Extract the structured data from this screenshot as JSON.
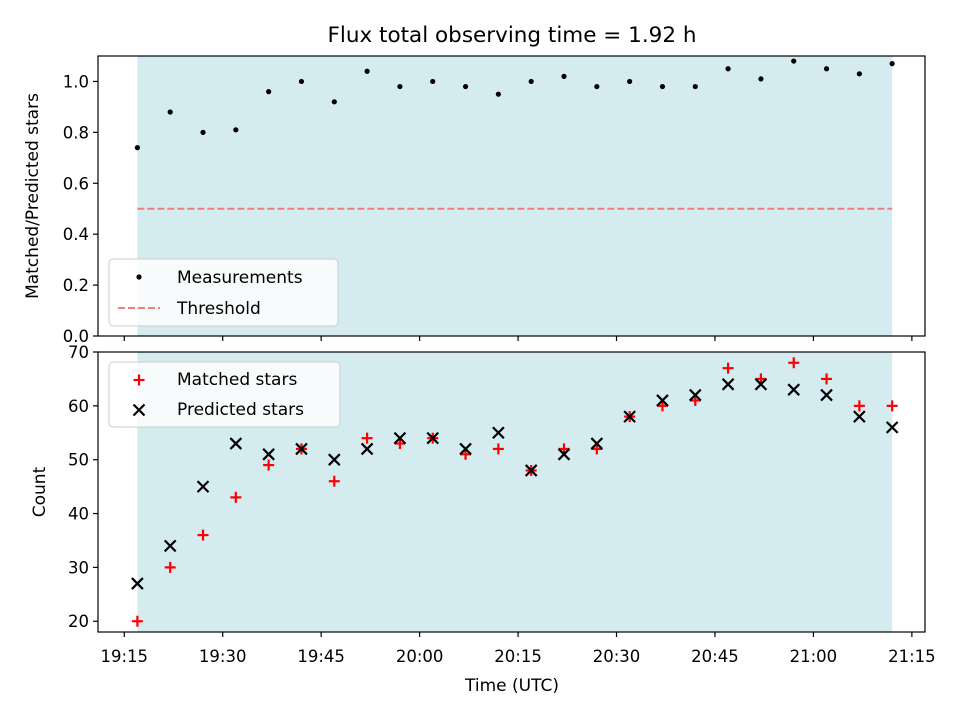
{
  "chart_data": [
    {
      "type": "scatter",
      "title": "Flux total observing time = 1.92 h",
      "ylabel": "Matched/Predicted stars",
      "xlabel": "",
      "xlim": [
        "19:11",
        "21:17"
      ],
      "ylim": [
        0,
        1.1
      ],
      "yticks": [
        0.0,
        0.2,
        0.4,
        0.6,
        0.8,
        1.0
      ],
      "yticklabels": [
        "0.0",
        "0.2",
        "0.4",
        "0.6",
        "0.8",
        "1.0"
      ],
      "grid": false,
      "legend_position": "lower-left",
      "shaded_interval": [
        "19:17",
        "21:12"
      ],
      "shade_color": "#d4ebf0",
      "series": [
        {
          "name": "Measurements",
          "marker": "dot",
          "color": "#000000",
          "x": [
            "19:17",
            "19:22",
            "19:27",
            "19:32",
            "19:37",
            "19:42",
            "19:47",
            "19:52",
            "19:57",
            "20:02",
            "20:07",
            "20:12",
            "20:17",
            "20:22",
            "20:27",
            "20:32",
            "20:37",
            "20:42",
            "20:47",
            "20:52",
            "20:57",
            "21:02",
            "21:07",
            "21:12"
          ],
          "y": [
            0.74,
            0.88,
            0.8,
            0.81,
            0.96,
            1.0,
            0.92,
            1.04,
            0.98,
            1.0,
            0.98,
            0.95,
            1.0,
            1.02,
            0.98,
            1.0,
            0.98,
            0.98,
            1.05,
            1.01,
            1.08,
            1.05,
            1.03,
            1.07
          ]
        }
      ],
      "threshold": {
        "name": "Threshold",
        "value": 0.5,
        "color": "#f08080",
        "style": "dashed"
      }
    },
    {
      "type": "scatter",
      "title": "",
      "ylabel": "Count",
      "xlabel": "Time (UTC)",
      "xlim": [
        "19:11",
        "21:17"
      ],
      "ylim": [
        18,
        70
      ],
      "yticks": [
        20,
        30,
        40,
        50,
        60,
        70
      ],
      "yticklabels": [
        "20",
        "30",
        "40",
        "50",
        "60",
        "70"
      ],
      "xticks": [
        "19:15",
        "19:30",
        "19:45",
        "20:00",
        "20:15",
        "20:30",
        "20:45",
        "21:00",
        "21:15"
      ],
      "grid": false,
      "legend_position": "upper-left",
      "shaded_interval": [
        "19:17",
        "21:12"
      ],
      "shade_color": "#d4ebf0",
      "series": [
        {
          "name": "Matched stars",
          "marker": "plus",
          "color": "#ff0000",
          "x": [
            "19:17",
            "19:22",
            "19:27",
            "19:32",
            "19:37",
            "19:42",
            "19:47",
            "19:52",
            "19:57",
            "20:02",
            "20:07",
            "20:12",
            "20:17",
            "20:22",
            "20:27",
            "20:32",
            "20:37",
            "20:42",
            "20:47",
            "20:52",
            "20:57",
            "21:02",
            "21:07",
            "21:12"
          ],
          "y": [
            20,
            30,
            36,
            43,
            49,
            52,
            46,
            54,
            53,
            54,
            51,
            52,
            48,
            52,
            52,
            58,
            60,
            61,
            67,
            65,
            68,
            65,
            60,
            60
          ]
        },
        {
          "name": "Predicted stars",
          "marker": "x",
          "color": "#000000",
          "x": [
            "19:17",
            "19:22",
            "19:27",
            "19:32",
            "19:37",
            "19:42",
            "19:47",
            "19:52",
            "19:57",
            "20:02",
            "20:07",
            "20:12",
            "20:17",
            "20:22",
            "20:27",
            "20:32",
            "20:37",
            "20:42",
            "20:47",
            "20:52",
            "20:57",
            "21:02",
            "21:07",
            "21:12"
          ],
          "y": [
            27,
            34,
            45,
            53,
            51,
            52,
            50,
            52,
            54,
            54,
            52,
            55,
            48,
            51,
            53,
            58,
            61,
            62,
            64,
            64,
            63,
            62,
            58,
            56
          ]
        }
      ]
    }
  ]
}
